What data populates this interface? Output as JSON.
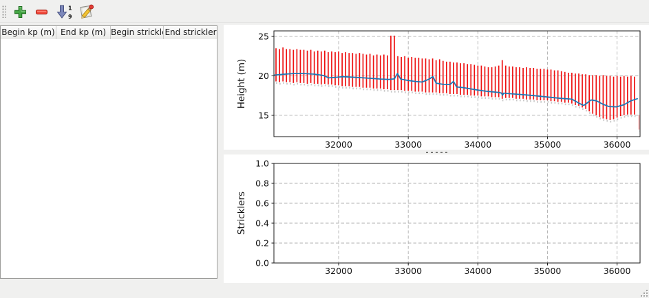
{
  "toolbar": {
    "buttons": [
      {
        "icon": "add-plus-icon",
        "action": "add-row"
      },
      {
        "icon": "remove-minus-icon",
        "action": "remove-row"
      },
      {
        "icon": "sort-numeric-down-icon",
        "action": "sort-1-9"
      },
      {
        "icon": "edit-pencil-icon",
        "action": "edit"
      }
    ]
  },
  "table": {
    "columns": [
      "Begin kp (m)",
      "End kp (m)",
      "Begin strickler",
      "End strickler"
    ],
    "rows": []
  },
  "colors": {
    "bar_red": "#ee1212",
    "line_blue": "#1f77b4",
    "bar_shadow_gray": "#c9c9c9",
    "faint_pink": "#ffadad",
    "grid_gray": "#b0b0b0"
  },
  "chart_data": [
    {
      "type": "bar",
      "title": "",
      "xlabel": "",
      "ylabel": "Height (m)",
      "xlim": [
        31070,
        36330
      ],
      "ylim": [
        12.3,
        25.7
      ],
      "xticks": [
        32000,
        33000,
        34000,
        35000,
        36000
      ],
      "xtick_labels": [
        "32000",
        "33000",
        "34000",
        "35000",
        "36000"
      ],
      "yticks": [
        15,
        20,
        25
      ],
      "ytick_labels": [
        "15",
        "20",
        "25"
      ],
      "grid": true,
      "legend": null,
      "series": [
        {
          "kind": "range-bars",
          "name": "cross-section-height-range",
          "color": "#ee1212",
          "shadow_color": "#c9c9c9",
          "kp": [
            31100,
            31150,
            31200,
            31250,
            31300,
            31350,
            31400,
            31450,
            31500,
            31550,
            31600,
            31650,
            31700,
            31750,
            31800,
            31850,
            31900,
            31950,
            32000,
            32050,
            32100,
            32150,
            32200,
            32250,
            32300,
            32350,
            32400,
            32450,
            32500,
            32550,
            32600,
            32650,
            32700,
            32750,
            32800,
            32850,
            32900,
            32950,
            33000,
            33050,
            33100,
            33150,
            33200,
            33250,
            33300,
            33350,
            33400,
            33450,
            33500,
            33550,
            33600,
            33650,
            33700,
            33750,
            33800,
            33850,
            33900,
            33950,
            34000,
            34050,
            34100,
            34150,
            34200,
            34250,
            34300,
            34350,
            34400,
            34450,
            34500,
            34550,
            34600,
            34650,
            34700,
            34750,
            34800,
            34850,
            34900,
            34950,
            35000,
            35050,
            35100,
            35150,
            35200,
            35250,
            35300,
            35350,
            35400,
            35450,
            35500,
            35550,
            35600,
            35650,
            35700,
            35750,
            35800,
            35850,
            35900,
            35950,
            36000,
            36050,
            36100,
            36150,
            36200,
            36250
          ],
          "top": [
            23.5,
            23.4,
            23.6,
            23.4,
            23.4,
            23.3,
            23.4,
            23.3,
            23.3,
            23.2,
            23.3,
            23.1,
            23.2,
            23.1,
            23.2,
            23.0,
            23.1,
            23.0,
            23.1,
            22.9,
            23.0,
            22.9,
            22.9,
            22.8,
            22.9,
            22.8,
            22.7,
            22.8,
            22.6,
            22.7,
            22.6,
            22.7,
            22.6,
            25.1,
            25.1,
            22.5,
            22.4,
            22.5,
            22.3,
            22.4,
            22.3,
            22.3,
            22.2,
            22.2,
            22.1,
            22.2,
            22.0,
            22.1,
            21.9,
            21.8,
            21.8,
            21.7,
            21.7,
            21.6,
            21.6,
            21.5,
            21.5,
            21.4,
            21.3,
            21.3,
            21.2,
            21.1,
            21.1,
            21.2,
            21.3,
            22.0,
            21.3,
            21.2,
            21.2,
            21.1,
            21.1,
            21.0,
            21.1,
            21.0,
            21.0,
            20.9,
            20.9,
            20.9,
            20.8,
            20.8,
            20.7,
            20.7,
            20.6,
            20.5,
            20.4,
            20.4,
            20.3,
            20.3,
            20.2,
            20.2,
            20.1,
            20.1,
            20.1,
            20.0,
            20.1,
            20.0,
            20.0,
            19.9,
            20.0,
            19.9,
            20.0,
            19.9,
            20.0,
            19.9
          ],
          "bottom": [
            19.3,
            19.2,
            19.3,
            19.2,
            19.2,
            19.1,
            19.2,
            19.1,
            19.1,
            19.0,
            19.1,
            19.0,
            19.0,
            18.9,
            19.0,
            18.9,
            18.9,
            18.8,
            18.8,
            18.7,
            18.7,
            18.7,
            18.6,
            18.6,
            18.6,
            18.5,
            18.5,
            18.5,
            18.4,
            18.4,
            18.4,
            18.3,
            18.3,
            18.2,
            18.2,
            18.2,
            18.2,
            18.1,
            18.1,
            18.1,
            18.0,
            18.0,
            18.0,
            17.9,
            17.9,
            17.9,
            17.9,
            17.8,
            17.8,
            17.8,
            17.7,
            17.7,
            17.7,
            17.6,
            17.6,
            17.6,
            17.5,
            17.5,
            17.5,
            17.4,
            17.4,
            17.4,
            17.3,
            17.3,
            17.3,
            17.1,
            17.2,
            17.2,
            17.2,
            17.1,
            17.1,
            17.1,
            17.0,
            17.0,
            17.0,
            16.9,
            16.9,
            16.9,
            16.9,
            16.8,
            16.8,
            16.7,
            16.7,
            16.6,
            16.6,
            16.5,
            16.3,
            16.2,
            16.0,
            15.8,
            15.5,
            15.2,
            15.0,
            14.8,
            14.6,
            14.5,
            14.4,
            14.5,
            14.7,
            14.9,
            15.0,
            15.1,
            15.1,
            15.1
          ]
        },
        {
          "kind": "range-bars",
          "name": "edge-faint-bar",
          "color": "#ffadad",
          "shadow_color": "#e6e6e6",
          "kp": [
            36315
          ],
          "top": [
            15.05
          ],
          "bottom": [
            13.2
          ]
        },
        {
          "kind": "line",
          "name": "bed-profile-line",
          "color": "#1f77b4",
          "x": [
            31080,
            31200,
            31350,
            31500,
            31650,
            31780,
            31860,
            31960,
            32060,
            32160,
            32300,
            32450,
            32600,
            32720,
            32800,
            32845,
            32890,
            33000,
            33100,
            33200,
            33290,
            33355,
            33400,
            33500,
            33600,
            33650,
            33695,
            33800,
            33900,
            34000,
            34100,
            34200,
            34300,
            34340,
            34355,
            34370,
            34450,
            34600,
            34800,
            35000,
            35200,
            35350,
            35460,
            35520,
            35575,
            35625,
            35700,
            35800,
            35880,
            35990,
            36100,
            36200,
            36290
          ],
          "y": [
            20.1,
            20.2,
            20.3,
            20.3,
            20.22,
            20.05,
            19.75,
            19.82,
            19.9,
            19.85,
            19.78,
            19.7,
            19.6,
            19.55,
            19.62,
            20.3,
            19.6,
            19.42,
            19.3,
            19.22,
            19.55,
            19.9,
            19.08,
            18.92,
            18.9,
            19.3,
            18.6,
            18.5,
            18.35,
            18.2,
            18.08,
            17.98,
            17.9,
            17.82,
            17.55,
            17.82,
            17.75,
            17.65,
            17.5,
            17.32,
            17.15,
            17.05,
            16.5,
            16.25,
            16.6,
            16.95,
            16.85,
            16.4,
            16.12,
            16.08,
            16.35,
            16.85,
            17.1
          ]
        }
      ]
    },
    {
      "type": "line",
      "title": "",
      "xlabel": "",
      "ylabel": "Stricklers",
      "xlim": [
        31070,
        36330
      ],
      "ylim": [
        0.0,
        1.0
      ],
      "xticks": [
        32000,
        33000,
        34000,
        35000,
        36000
      ],
      "xtick_labels": [
        "32000",
        "33000",
        "34000",
        "35000",
        "36000"
      ],
      "yticks": [
        0.0,
        0.2,
        0.4,
        0.6,
        0.8,
        1.0
      ],
      "ytick_labels": [
        "0.0",
        "0.2",
        "0.4",
        "0.6",
        "0.8",
        "1.0"
      ],
      "grid": true,
      "legend": null,
      "series": []
    }
  ]
}
